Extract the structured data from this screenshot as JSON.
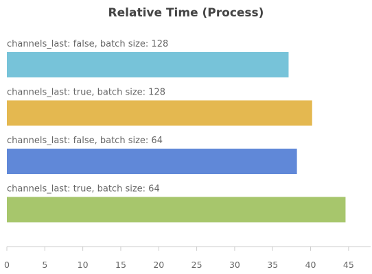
{
  "chart_data": {
    "type": "bar",
    "orientation": "horizontal",
    "title": "Relative Time (Process)",
    "categories": [
      "channels_last: false, batch size: 128",
      "channels_last: true, batch size: 128",
      "channels_last: false, batch size: 64",
      "channels_last: true, batch size: 64"
    ],
    "values": [
      37.1,
      40.2,
      38.2,
      44.6
    ],
    "colors": [
      "#77c3d9",
      "#e4b850",
      "#6088d8",
      "#a7c66c"
    ],
    "xlim": [
      0,
      47
    ],
    "xticks": [
      "0",
      "5",
      "10",
      "15",
      "20",
      "25",
      "30",
      "35",
      "40",
      "45"
    ],
    "xlabel": "",
    "ylabel": "",
    "grid": false,
    "legend": "none"
  }
}
